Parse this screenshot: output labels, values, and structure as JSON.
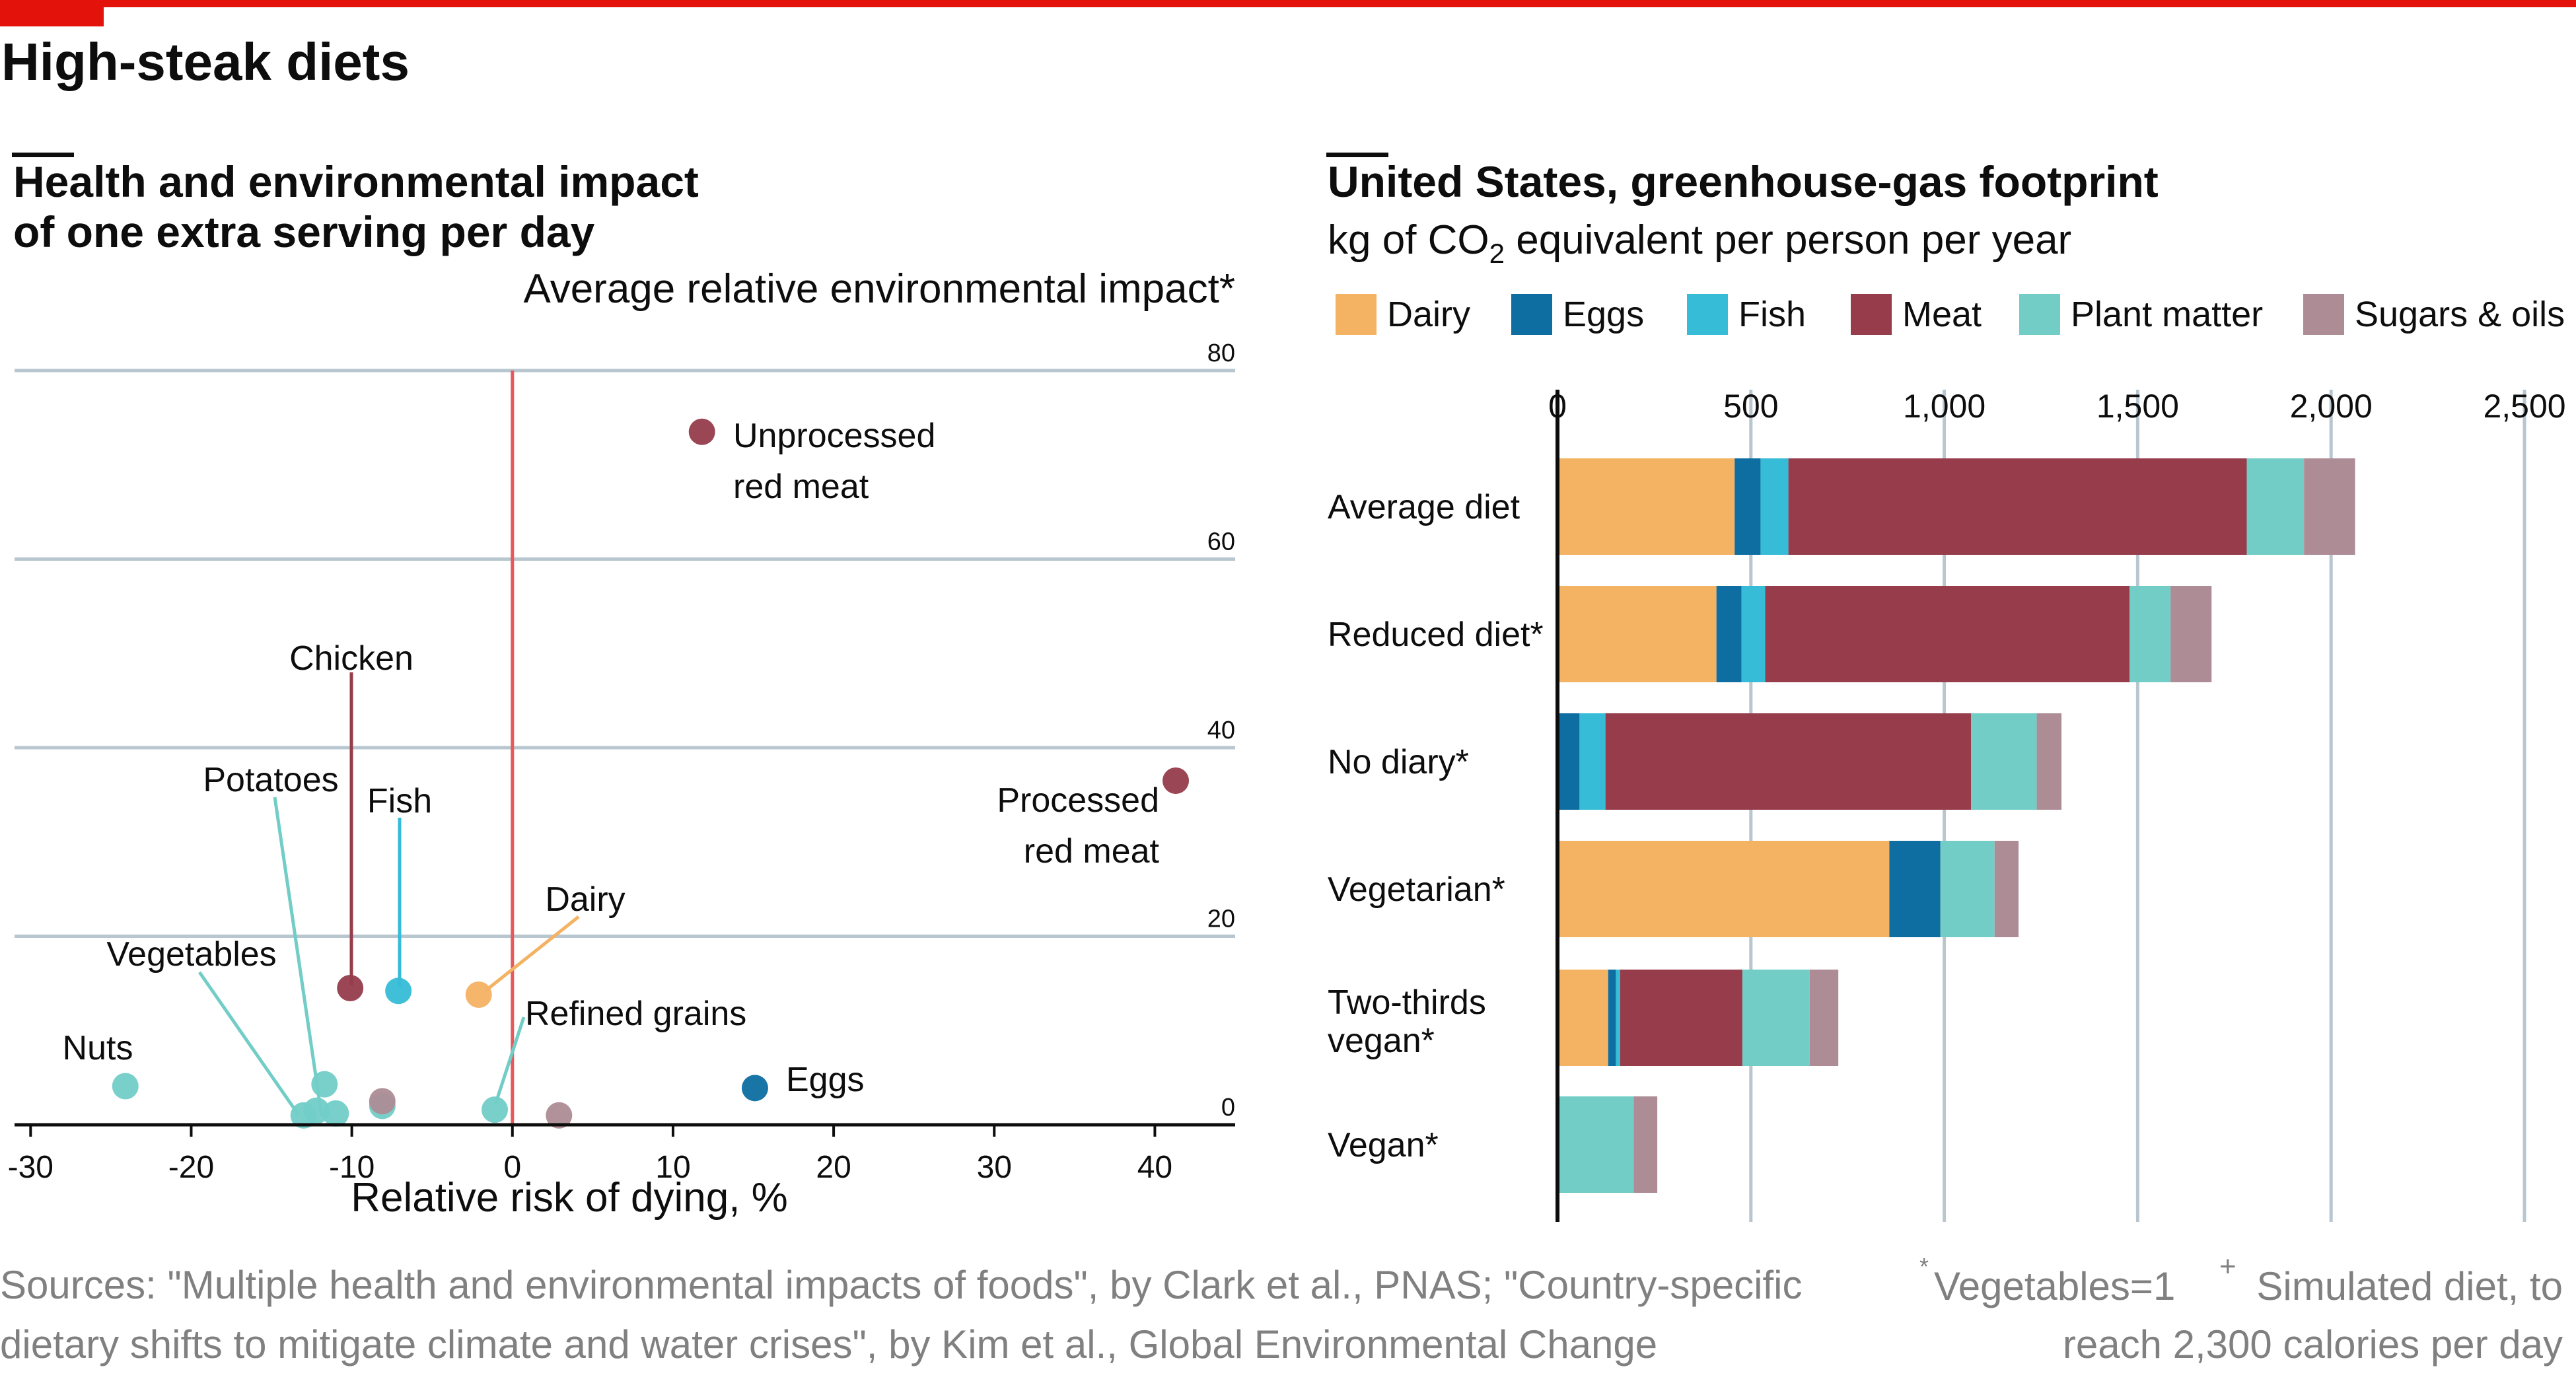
{
  "header": {
    "title": "High-steak diets"
  },
  "chart_data": [
    {
      "type": "scatter",
      "title": "Health and environmental impact\nof one extra serving per day",
      "ylabel": "Average relative environmental impact*",
      "xlabel": "Relative risk of dying, %",
      "xlim": [
        -31,
        45
      ],
      "ylim": [
        0,
        80
      ],
      "xticks": [
        "-30",
        "-20",
        "-10",
        "0",
        "10",
        "20",
        "30",
        "40"
      ],
      "yticks": [
        "80",
        "60",
        "40",
        "20",
        "0"
      ],
      "grid": "horizontal",
      "reference_line_x": 0,
      "points": [
        {
          "label": "Unprocessed red meat",
          "x": 11.8,
          "y": 73.5,
          "color": "#963c4b"
        },
        {
          "label": "Processed red meat",
          "x": 41.3,
          "y": 36.5,
          "color": "#963c4b"
        },
        {
          "label": "Chicken",
          "x": -10.1,
          "y": 14.5,
          "color": "#963c4b"
        },
        {
          "label": "Fish",
          "x": -7.1,
          "y": 14.2,
          "color": "#36bcd6"
        },
        {
          "label": "Dairy",
          "x": -2.1,
          "y": 13.8,
          "color": "#f4b263"
        },
        {
          "label": "Eggs",
          "x": 15.1,
          "y": 3.9,
          "color": "#0e6ea2"
        },
        {
          "label": "Nuts",
          "x": -24.1,
          "y": 4.1,
          "color": "#72cdc7"
        },
        {
          "label": "Vegetables",
          "x": -13.0,
          "y": 1.0,
          "color": "#72cdc7"
        },
        {
          "label": "Potatoes",
          "x": -11.7,
          "y": 4.3,
          "color": "#72cdc7"
        },
        {
          "label": "",
          "x": -12.2,
          "y": 1.5,
          "color": "#72cdc7"
        },
        {
          "label": "",
          "x": -11.0,
          "y": 1.2,
          "color": "#72cdc7"
        },
        {
          "label": "",
          "x": -8.1,
          "y": 2.0,
          "color": "#72cdc7"
        },
        {
          "label": "",
          "x": -8.1,
          "y": 2.5,
          "color": "#ad8c96"
        },
        {
          "label": "Refined grains",
          "x": -1.1,
          "y": 1.6,
          "color": "#72cdc7"
        },
        {
          "label": "",
          "x": 2.9,
          "y": 1.0,
          "color": "#ad8c96"
        }
      ]
    },
    {
      "type": "bar",
      "orientation": "horizontal",
      "stacked": true,
      "title": "United States, greenhouse-gas footprint",
      "subtitle": "kg of CO2 equivalent per person per year",
      "xlim": [
        0,
        2500
      ],
      "xticks": [
        "0",
        "500",
        "1,000",
        "1,500",
        "2,000",
        "2,500"
      ],
      "legend_position": "top",
      "categories": [
        "Average diet",
        "Reduced diet*",
        "No diary*",
        "Vegetarian*",
        "Two-thirds vegan*",
        "Vegan*"
      ],
      "series": [
        {
          "name": "Dairy",
          "color": "#f4b263",
          "values": [
            458,
            411,
            0,
            858,
            131,
            0
          ]
        },
        {
          "name": "Eggs",
          "color": "#0e6ea2",
          "values": [
            67,
            65,
            57,
            132,
            20,
            0
          ]
        },
        {
          "name": "Fish",
          "color": "#36bcd6",
          "values": [
            72,
            61,
            67,
            0,
            11,
            0
          ]
        },
        {
          "name": "Meat",
          "color": "#963c4b",
          "values": [
            1185,
            942,
            945,
            0,
            316,
            0
          ]
        },
        {
          "name": "Plant matter",
          "color": "#72cdc7",
          "values": [
            148,
            106,
            170,
            140,
            174,
            197
          ]
        },
        {
          "name": "Sugars & oils",
          "color": "#ad8c96",
          "values": [
            132,
            106,
            64,
            62,
            74,
            61
          ]
        }
      ]
    }
  ],
  "footer": {
    "sources_line1": "Sources: \"Multiple health and environmental impacts of foods\", by Clark et al., PNAS; \"Country-specific",
    "sources_line2": "dietary shifts to mitigate climate and water crises\", by Kim et al., Global Environmental Change",
    "note1": "Vegetables=1",
    "note2": "Simulated diet, to",
    "note2_line2": "reach 2,300 calories per day"
  }
}
